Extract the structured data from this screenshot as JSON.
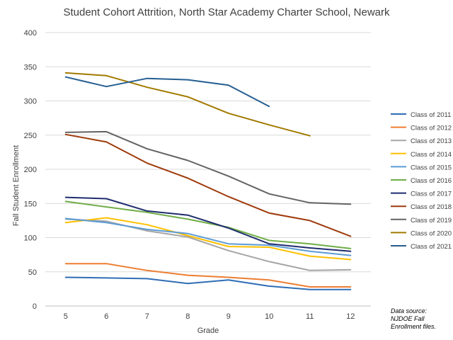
{
  "chart_data": {
    "type": "line",
    "title": "Student Cohort Attrition, North Star Academy Charter School, Newark",
    "xlabel": "Grade",
    "ylabel": "Fall Student Enrollment",
    "x": [
      "5",
      "6",
      "7",
      "8",
      "9",
      "10",
      "11",
      "12"
    ],
    "ylim": [
      0,
      400
    ],
    "yticks": [
      0,
      50,
      100,
      150,
      200,
      250,
      300,
      350,
      400
    ],
    "grid": true,
    "legend": "right",
    "series": [
      {
        "name": "Class of 2011",
        "color": "#2f6db5",
        "values": [
          42,
          41,
          40,
          33,
          38,
          29,
          24,
          24
        ]
      },
      {
        "name": "Class of 2012",
        "color": "#ed7d31",
        "values": [
          62,
          62,
          52,
          45,
          42,
          38,
          28,
          28
        ]
      },
      {
        "name": "Class of 2013",
        "color": "#a5a5a5",
        "values": [
          127,
          124,
          110,
          101,
          81,
          65,
          52,
          53
        ]
      },
      {
        "name": "Class of 2014",
        "color": "#ffc000",
        "values": [
          122,
          129,
          119,
          103,
          87,
          86,
          73,
          68
        ]
      },
      {
        "name": "Class of 2015",
        "color": "#5b9bd5",
        "values": [
          128,
          122,
          112,
          106,
          91,
          89,
          80,
          74
        ]
      },
      {
        "name": "Class of 2016",
        "color": "#70ad47",
        "values": [
          153,
          145,
          137,
          127,
          115,
          96,
          91,
          84
        ]
      },
      {
        "name": "Class of 2017",
        "color": "#1f2d6e",
        "values": [
          159,
          157,
          139,
          133,
          114,
          91,
          85,
          80
        ]
      },
      {
        "name": "Class of 2018",
        "color": "#9e3a0c",
        "values": [
          251,
          240,
          209,
          187,
          160,
          136,
          125,
          102
        ]
      },
      {
        "name": "Class of 2019",
        "color": "#636363",
        "values": [
          254,
          255,
          230,
          213,
          190,
          164,
          151,
          149
        ]
      },
      {
        "name": "Class of 2020",
        "color": "#a27a00",
        "values": [
          341,
          337,
          320,
          306,
          282,
          265,
          249,
          null
        ]
      },
      {
        "name": "Class of 2021",
        "color": "#255e91",
        "values": [
          335,
          321,
          333,
          331,
          323,
          292,
          null,
          null
        ]
      }
    ]
  },
  "source_note": "Data source:\nNJDOE Fall\nEnrollment files."
}
